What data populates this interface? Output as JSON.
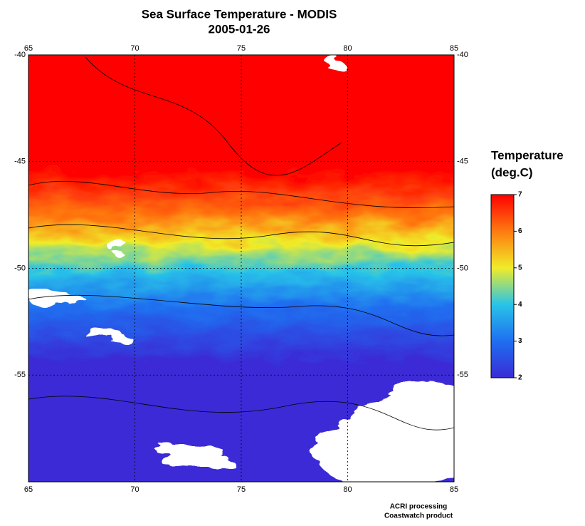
{
  "map": {
    "title": "Sea Surface Temperature - MODIS",
    "subtitle": "2005-01-26",
    "xlim": [
      65,
      85
    ],
    "xticks": [
      65,
      70,
      75,
      80,
      85
    ],
    "ylim": [
      -40,
      -60
    ],
    "yticks": [
      -40,
      -45,
      -50,
      -55
    ],
    "grid": true,
    "colorbar": {
      "title": "Temperature",
      "units": "(deg.C)",
      "lim": [
        2,
        7
      ],
      "ticks": [
        2,
        3,
        4,
        5,
        6,
        7
      ],
      "colors": [
        "#3a2bd6",
        "#1f6ff0",
        "#28c4e8",
        "#f0ec28",
        "#ff7a10",
        "#ff0000"
      ]
    },
    "footer": [
      "ACRI processing",
      "Coastwatch product"
    ]
  }
}
